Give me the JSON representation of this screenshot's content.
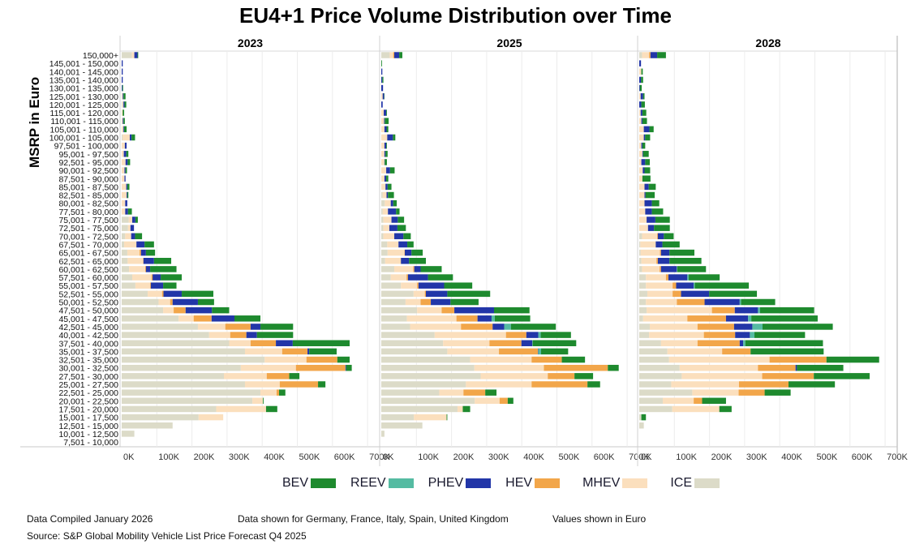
{
  "title": "EU4+1 Price Volume Distribution over Time",
  "legend": [
    {
      "name": "BEV",
      "color": "#1e8a2e"
    },
    {
      "name": "REEV",
      "color": "#55bba2"
    },
    {
      "name": "PHEV",
      "color": "#2236a8"
    },
    {
      "name": "HEV",
      "color": "#f2a64a"
    },
    {
      "name": "MHEV",
      "color": "#fbdfbd"
    },
    {
      "name": "ICE",
      "color": "#dcdbc8"
    }
  ],
  "footer": {
    "compiled": "Data Compiled January 2026",
    "countries": "Data shown for Germany, France, Italy, Spain, United Kingdom",
    "units": "Values shown in Euro",
    "source": "Source: S&P Global Mobility Vehicle List Price Forecast Q4 2025"
  },
  "chart_data": {
    "type": "bar",
    "orientation": "horizontal-stacked",
    "title": "EU4+1 Price Volume Distribution over Time",
    "ylabel": "MSRP in Euro",
    "xlabel": "",
    "xlim": [
      0,
      700000
    ],
    "x_ticks": [
      "0K",
      "100K",
      "200K",
      "300K",
      "400K",
      "500K",
      "600K",
      "700K"
    ],
    "grid": true,
    "legend_position": "bottom",
    "units": "vehicles (thousands)",
    "segments": [
      "ICE",
      "MHEV",
      "HEV",
      "PHEV",
      "REEV",
      "BEV"
    ],
    "categories": [
      "150,000+",
      "145,001 - 150,000",
      "140,001 - 145,000",
      "135,001 - 140,000",
      "130,001 - 135,000",
      "125,001 - 130,000",
      "120,001 - 125,000",
      "115,001 - 120,000",
      "110,001 - 115,000",
      "105,001 - 110,000",
      "100,001 - 105,000",
      "97,501 - 100,000",
      "95,001 - 97,500",
      "92,501 - 95,000",
      "90,001 - 92,500",
      "87,501 - 90,000",
      "85,001 - 87,500",
      "82,501 - 85,000",
      "80,001 - 82,500",
      "77,501 - 80,000",
      "75,001 - 77,500",
      "72,501 - 75,000",
      "70,001 - 72,500",
      "67,501 - 70,000",
      "65,001 - 67,500",
      "62,501 - 65,000",
      "60,001 - 62,500",
      "57,501 - 60,000",
      "55,001 - 57,500",
      "52,501 - 55,000",
      "50,001 - 52,500",
      "47,501 - 50,000",
      "45,001 - 47,500",
      "42,501 - 45,000",
      "40,001 - 42,500",
      "37,501 - 40,000",
      "35,001 - 37,500",
      "32,501 - 35,000",
      "30,001 - 32,500",
      "27,501 - 30,000",
      "25,001 - 27,500",
      "22,501 - 25,000",
      "20,001 - 22,500",
      "17,501 - 20,000",
      "15,001 - 17,500",
      "12,501 - 15,000",
      "10,001 - 12,500",
      "7,501 - 10,000"
    ],
    "panels": [
      {
        "year": "2023",
        "rows": [
          [
            29,
            7,
            0,
            9,
            0,
            2
          ],
          [
            0,
            0,
            0,
            3,
            0,
            0
          ],
          [
            0,
            0,
            0,
            3,
            0,
            0
          ],
          [
            0,
            0,
            0,
            3,
            0,
            0
          ],
          [
            0,
            0,
            0,
            2,
            0,
            2
          ],
          [
            0,
            3,
            0,
            2,
            0,
            6
          ],
          [
            2,
            3,
            0,
            3,
            0,
            5
          ],
          [
            0,
            3,
            0,
            0,
            0,
            4
          ],
          [
            0,
            3,
            0,
            2,
            0,
            4
          ],
          [
            0,
            5,
            0,
            2,
            0,
            7
          ],
          [
            3,
            20,
            0,
            5,
            0,
            10
          ],
          [
            0,
            9,
            0,
            5,
            0,
            0
          ],
          [
            0,
            6,
            0,
            7,
            0,
            6
          ],
          [
            0,
            11,
            0,
            6,
            0,
            7
          ],
          [
            0,
            8,
            0,
            3,
            0,
            4
          ],
          [
            0,
            8,
            0,
            3,
            0,
            0
          ],
          [
            0,
            13,
            0,
            3,
            0,
            6
          ],
          [
            0,
            14,
            0,
            2,
            0,
            3
          ],
          [
            0,
            10,
            0,
            6,
            0,
            0
          ],
          [
            0,
            10,
            0,
            8,
            0,
            11
          ],
          [
            20,
            10,
            0,
            9,
            0,
            7
          ],
          [
            18,
            7,
            0,
            10,
            0,
            0
          ],
          [
            10,
            17,
            0,
            11,
            0,
            20
          ],
          [
            7,
            35,
            0,
            23,
            0,
            27
          ],
          [
            16,
            35,
            4,
            14,
            0,
            26
          ],
          [
            17,
            44,
            1,
            30,
            0,
            49
          ],
          [
            21,
            46,
            2,
            12,
            0,
            75
          ],
          [
            30,
            55,
            3,
            23,
            0,
            60
          ],
          [
            39,
            42,
            2,
            35,
            0,
            38
          ],
          [
            74,
            41,
            4,
            52,
            0,
            90
          ],
          [
            105,
            33,
            7,
            72,
            0,
            46
          ],
          [
            118,
            30,
            34,
            75,
            0,
            49
          ],
          [
            162,
            43,
            51,
            65,
            0,
            74
          ],
          [
            217,
            78,
            72,
            28,
            0,
            93
          ],
          [
            249,
            60,
            46,
            30,
            0,
            103
          ],
          [
            306,
            61,
            72,
            48,
            0,
            162
          ],
          [
            351,
            106,
            72,
            5,
            0,
            78
          ],
          [
            407,
            119,
            88,
            0,
            0,
            35
          ],
          [
            339,
            157,
            141,
            2,
            0,
            16
          ],
          [
            291,
            122,
            64,
            0,
            0,
            29
          ],
          [
            351,
            99,
            109,
            0,
            0,
            21
          ],
          [
            395,
            46,
            7,
            0,
            0,
            18
          ],
          [
            372,
            30,
            0,
            0,
            0,
            2
          ],
          [
            269,
            142,
            0,
            0,
            0,
            32
          ],
          [
            219,
            70,
            0,
            0,
            0,
            0
          ],
          [
            145,
            0,
            0,
            0,
            0,
            0
          ],
          [
            36,
            0,
            0,
            0,
            0,
            0
          ],
          [
            0,
            0,
            0,
            0,
            0,
            0
          ]
        ]
      },
      {
        "year": "2025",
        "rows": [
          [
            24,
            10,
            3,
            14,
            0,
            9
          ],
          [
            0,
            0,
            0,
            0,
            0,
            2
          ],
          [
            0,
            0,
            0,
            3,
            0,
            0
          ],
          [
            0,
            0,
            0,
            3,
            0,
            3
          ],
          [
            0,
            0,
            0,
            5,
            0,
            0
          ],
          [
            0,
            4,
            0,
            4,
            0,
            1
          ],
          [
            0,
            0,
            0,
            4,
            0,
            0
          ],
          [
            0,
            7,
            0,
            7,
            0,
            2
          ],
          [
            0,
            8,
            0,
            2,
            0,
            11
          ],
          [
            0,
            9,
            0,
            6,
            0,
            5
          ],
          [
            0,
            17,
            0,
            16,
            0,
            7
          ],
          [
            0,
            9,
            0,
            5,
            0,
            2
          ],
          [
            0,
            9,
            0,
            3,
            0,
            6
          ],
          [
            0,
            9,
            0,
            1,
            0,
            6
          ],
          [
            0,
            14,
            0,
            11,
            0,
            13
          ],
          [
            0,
            9,
            0,
            5,
            0,
            6
          ],
          [
            0,
            12,
            0,
            6,
            0,
            11
          ],
          [
            4,
            11,
            0,
            4,
            0,
            17
          ],
          [
            10,
            17,
            0,
            7,
            0,
            10
          ],
          [
            4,
            15,
            0,
            23,
            0,
            10
          ],
          [
            6,
            23,
            0,
            18,
            0,
            18
          ],
          [
            6,
            17,
            0,
            23,
            0,
            24
          ],
          [
            6,
            31,
            0,
            26,
            0,
            21
          ],
          [
            17,
            32,
            0,
            25,
            0,
            18
          ],
          [
            18,
            48,
            1,
            19,
            0,
            32
          ],
          [
            11,
            44,
            1,
            23,
            0,
            48
          ],
          [
            37,
            54,
            3,
            18,
            0,
            60
          ],
          [
            27,
            45,
            4,
            57,
            0,
            71
          ],
          [
            56,
            46,
            4,
            73,
            0,
            80
          ],
          [
            92,
            32,
            3,
            61,
            0,
            122
          ],
          [
            69,
            43,
            29,
            56,
            0,
            80
          ],
          [
            102,
            70,
            36,
            113,
            0,
            101
          ],
          [
            73,
            141,
            60,
            40,
            9,
            101
          ],
          [
            82,
            145,
            90,
            33,
            19,
            128
          ],
          [
            152,
            203,
            58,
            34,
            7,
            86
          ],
          [
            176,
            132,
            91,
            31,
            1,
            124
          ],
          [
            188,
            147,
            111,
            1,
            8,
            77
          ],
          [
            253,
            175,
            86,
            0,
            0,
            66
          ],
          [
            265,
            198,
            182,
            0,
            0,
            31
          ],
          [
            283,
            191,
            76,
            0,
            0,
            53
          ],
          [
            241,
            187,
            159,
            0,
            0,
            36
          ],
          [
            165,
            69,
            62,
            0,
            0,
            32
          ],
          [
            266,
            71,
            23,
            0,
            0,
            16
          ],
          [
            217,
            15,
            0,
            0,
            0,
            21
          ],
          [
            93,
            93,
            0,
            0,
            0,
            2
          ],
          [
            117,
            0,
            0,
            0,
            0,
            0
          ],
          [
            9,
            0,
            0,
            0,
            0,
            0
          ],
          [
            0,
            0,
            0,
            0,
            0,
            0
          ]
        ]
      },
      {
        "year": "2028",
        "rows": [
          [
            8,
            20,
            4,
            19,
            0,
            25
          ],
          [
            0,
            0,
            0,
            5,
            0,
            0
          ],
          [
            0,
            6,
            0,
            0,
            0,
            4
          ],
          [
            0,
            0,
            0,
            5,
            0,
            6
          ],
          [
            0,
            0,
            0,
            2,
            0,
            5
          ],
          [
            0,
            4,
            0,
            7,
            0,
            4
          ],
          [
            0,
            0,
            0,
            6,
            0,
            10
          ],
          [
            0,
            4,
            0,
            5,
            0,
            11
          ],
          [
            0,
            6,
            0,
            3,
            0,
            13
          ],
          [
            0,
            13,
            0,
            16,
            0,
            12
          ],
          [
            0,
            13,
            0,
            4,
            0,
            14
          ],
          [
            0,
            6,
            0,
            3,
            0,
            8
          ],
          [
            0,
            9,
            0,
            2,
            0,
            16
          ],
          [
            0,
            6,
            0,
            11,
            0,
            13
          ],
          [
            0,
            10,
            0,
            5,
            0,
            16
          ],
          [
            0,
            9,
            0,
            0,
            0,
            23
          ],
          [
            0,
            15,
            0,
            12,
            0,
            20
          ],
          [
            0,
            15,
            0,
            3,
            0,
            26
          ],
          [
            0,
            15,
            0,
            21,
            0,
            21
          ],
          [
            0,
            17,
            0,
            19,
            0,
            32
          ],
          [
            0,
            21,
            0,
            25,
            0,
            41
          ],
          [
            0,
            25,
            0,
            17,
            0,
            45
          ],
          [
            8,
            43,
            2,
            17,
            0,
            28
          ],
          [
            3,
            44,
            0,
            19,
            0,
            49
          ],
          [
            4,
            55,
            3,
            24,
            0,
            71
          ],
          [
            6,
            43,
            4,
            33,
            0,
            91
          ],
          [
            8,
            50,
            4,
            45,
            1,
            82
          ],
          [
            19,
            57,
            7,
            54,
            4,
            88
          ],
          [
            19,
            76,
            10,
            50,
            3,
            154
          ],
          [
            23,
            72,
            24,
            80,
            0,
            136
          ],
          [
            19,
            88,
            79,
            100,
            4,
            97
          ],
          [
            21,
            186,
            65,
            66,
            6,
            154
          ],
          [
            11,
            126,
            110,
            63,
            9,
            189
          ],
          [
            30,
            136,
            104,
            52,
            29,
            200
          ],
          [
            28,
            156,
            89,
            42,
            13,
            144
          ],
          [
            62,
            104,
            120,
            10,
            6,
            221
          ],
          [
            80,
            156,
            81,
            0,
            0,
            208
          ],
          [
            85,
            286,
            162,
            0,
            0,
            150
          ],
          [
            115,
            223,
            107,
            4,
            0,
            132
          ],
          [
            121,
            229,
            147,
            0,
            0,
            159
          ],
          [
            91,
            193,
            141,
            0,
            0,
            132
          ],
          [
            151,
            132,
            74,
            0,
            0,
            74
          ],
          [
            67,
            88,
            24,
            0,
            0,
            68
          ],
          [
            94,
            134,
            0,
            0,
            0,
            35
          ],
          [
            6,
            0,
            0,
            0,
            0,
            13
          ],
          [
            13,
            0,
            0,
            0,
            0,
            0
          ],
          [
            0,
            0,
            0,
            0,
            0,
            0
          ],
          [
            0,
            0,
            0,
            0,
            0,
            0
          ]
        ]
      }
    ]
  }
}
